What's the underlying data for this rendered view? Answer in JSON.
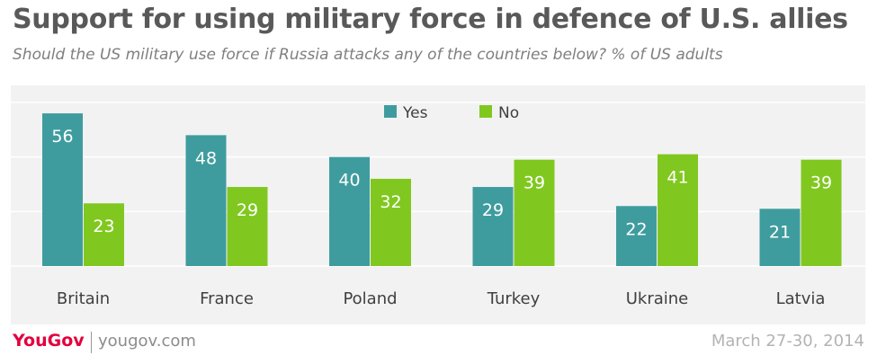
{
  "chart_data": {
    "type": "bar",
    "title": "Support for using military force in defence of U.S. allies",
    "subtitle": "Should the US military use force if Russia attacks any of the countries below? % of US adults",
    "categories": [
      "Britain",
      "France",
      "Poland",
      "Turkey",
      "Ukraine",
      "Latvia"
    ],
    "series": [
      {
        "name": "Yes",
        "color": "#3f9c9e",
        "values": [
          56,
          48,
          40,
          29,
          22,
          21
        ]
      },
      {
        "name": "No",
        "color": "#80c81f",
        "values": [
          23,
          29,
          32,
          39,
          41,
          39
        ]
      }
    ],
    "ylim": [
      0,
      60
    ],
    "grid": true,
    "legend_position": "top-center",
    "data_labels": true
  },
  "footer": {
    "logo": "YouGov",
    "url": "yougov.com",
    "date": "March 27-30, 2014"
  }
}
